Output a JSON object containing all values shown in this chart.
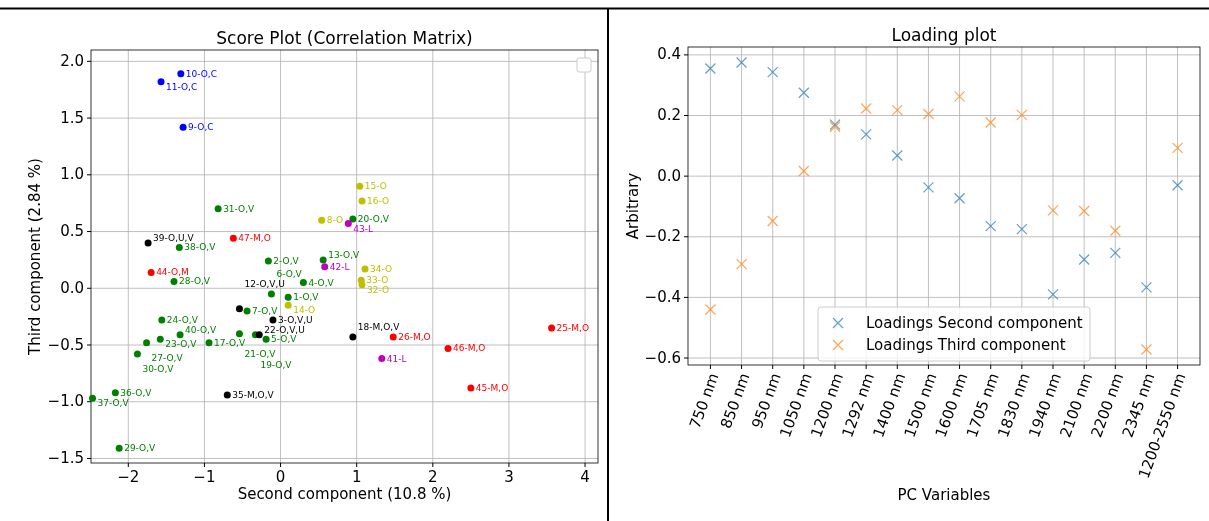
{
  "chart_data": [
    {
      "type": "scatter",
      "title": "Score Plot (Correlation Matrix)",
      "xlabel": "Second component (10.8 %)",
      "ylabel": "Third component (2.84 %)",
      "xlim": [
        -2.49,
        4.17
      ],
      "ylim": [
        -1.54,
        2.1
      ],
      "xticks": [
        {
          "value": -2,
          "label": "−2"
        },
        {
          "value": -1,
          "label": "−1"
        },
        0,
        1,
        2,
        3,
        4
      ],
      "yticks": [
        {
          "value": -1.5,
          "label": "−1.5"
        },
        {
          "value": -1,
          "label": "−1.0"
        },
        {
          "value": -0.5,
          "label": "−0.5"
        },
        {
          "value": 0,
          "label": "0.0"
        },
        {
          "value": 0.5,
          "label": "0.5"
        },
        {
          "value": 1,
          "label": "1.0"
        },
        {
          "value": 1.5,
          "label": "1.5"
        },
        {
          "value": 2,
          "label": "2.0"
        }
      ],
      "grid": true,
      "marker": "circle",
      "legend": false,
      "series": [
        {
          "color": "#0000ff",
          "x": [
            -1.31,
            -1.57,
            -1.28
          ],
          "values": [
            1.89,
            1.82,
            1.42
          ]
        },
        {
          "color": "#008000",
          "x": [
            -0.82,
            -1.33,
            -1.4,
            -0.16,
            0.95,
            0.56,
            0.3,
            -0.12,
            0.1,
            -0.44,
            -1.56,
            -1.32,
            -1.58,
            -1.76,
            -0.94,
            -0.54,
            -0.33,
            -0.19,
            -1.88,
            -2.17,
            -2.47,
            -2.12
          ],
          "values": [
            0.7,
            0.36,
            0.06,
            0.24,
            0.61,
            0.25,
            0.05,
            -0.05,
            -0.08,
            -0.2,
            -0.28,
            -0.41,
            -0.45,
            -0.48,
            -0.48,
            -0.4,
            -0.41,
            -0.45,
            -0.58,
            -0.92,
            -0.97,
            -1.41
          ]
        },
        {
          "color": "#000000",
          "x": [
            -1.74,
            -0.54,
            -0.1,
            -0.28,
            -0.7,
            0.95
          ],
          "values": [
            0.4,
            -0.18,
            -0.28,
            -0.41,
            -0.94,
            -0.43
          ]
        },
        {
          "color": "#ff0000",
          "x": [
            -0.62,
            -1.7,
            1.48,
            2.2,
            2.5,
            3.56
          ],
          "values": [
            0.44,
            0.14,
            -0.43,
            -0.53,
            -0.88,
            -0.35
          ]
        },
        {
          "color": "#bfbf00",
          "x": [
            0.54,
            1.04,
            1.07,
            1.11,
            1.06,
            1.07,
            0.1
          ],
          "values": [
            0.6,
            0.9,
            0.77,
            0.17,
            0.07,
            0.03,
            -0.15
          ]
        },
        {
          "color": "#bf00bf",
          "x": [
            0.89,
            0.58,
            1.33
          ],
          "values": [
            0.57,
            0.19,
            -0.62
          ]
        }
      ],
      "annotations": [
        {
          "text": "10-O,C",
          "x": -1.31,
          "y": 1.89
        },
        {
          "text": "11-O,C",
          "x": -1.57,
          "y": 1.82
        },
        {
          "text": "9-O,C",
          "x": -1.28,
          "y": 1.42
        },
        {
          "text": "31-O,V",
          "x": -0.82,
          "y": 0.7
        },
        {
          "text": "38-O,V",
          "x": -1.33,
          "y": 0.36
        },
        {
          "text": "28-O,V",
          "x": -1.4,
          "y": 0.06
        },
        {
          "text": "2-O,V",
          "x": -0.16,
          "y": 0.24
        },
        {
          "text": "20-O,V",
          "x": 0.95,
          "y": 0.61
        },
        {
          "text": "13-O,V",
          "x": 0.56,
          "y": 0.25
        },
        {
          "text": "4-O,V",
          "x": 0.3,
          "y": 0.05
        },
        {
          "text": "6-O,V",
          "x": -0.12,
          "y": -0.05
        },
        {
          "text": "1-O,V",
          "x": 0.1,
          "y": -0.08
        },
        {
          "text": "7-O,V",
          "x": -0.44,
          "y": -0.2
        },
        {
          "text": "24-O,V",
          "x": -1.56,
          "y": -0.28
        },
        {
          "text": "40-O,V",
          "x": -1.32,
          "y": -0.41
        },
        {
          "text": "23-O,V",
          "x": -1.58,
          "y": -0.45
        },
        {
          "text": "27-O,V",
          "x": -1.76,
          "y": -0.48
        },
        {
          "text": "17-O,V",
          "x": -0.94,
          "y": -0.48
        },
        {
          "text": "21-O,V",
          "x": -0.54,
          "y": -0.4
        },
        {
          "text": "19-O,V",
          "x": -0.33,
          "y": -0.41
        },
        {
          "text": "5-O,V",
          "x": -0.19,
          "y": -0.45
        },
        {
          "text": "30-O,V",
          "x": -1.88,
          "y": -0.58
        },
        {
          "text": "36-O,V",
          "x": -2.17,
          "y": -0.92
        },
        {
          "text": "37-O,V",
          "x": -2.47,
          "y": -0.97
        },
        {
          "text": "29-O,V",
          "x": -2.12,
          "y": -1.41
        },
        {
          "text": "39-O,U,V",
          "x": -1.74,
          "y": 0.4
        },
        {
          "text": "12-O,V,U",
          "x": -0.54,
          "y": -0.18
        },
        {
          "text": "3-O,V,U",
          "x": -0.1,
          "y": -0.28
        },
        {
          "text": "22-O,V,U",
          "x": -0.28,
          "y": -0.41
        },
        {
          "text": "35-M,O,V",
          "x": -0.7,
          "y": -0.94
        },
        {
          "text": "18-M,O,V",
          "x": 0.95,
          "y": -0.43
        },
        {
          "text": "47-M,O",
          "x": -0.62,
          "y": 0.44
        },
        {
          "text": "44-O,M",
          "x": -1.7,
          "y": 0.14
        },
        {
          "text": "26-M,O",
          "x": 1.48,
          "y": -0.43
        },
        {
          "text": "46-M,O",
          "x": 2.2,
          "y": -0.53
        },
        {
          "text": "45-M,O",
          "x": 2.5,
          "y": -0.88
        },
        {
          "text": "25-M,O",
          "x": 3.56,
          "y": -0.35
        },
        {
          "text": "8-O",
          "x": 0.54,
          "y": 0.6
        },
        {
          "text": "15-O",
          "x": 1.04,
          "y": 0.9
        },
        {
          "text": "16-O",
          "x": 1.07,
          "y": 0.77
        },
        {
          "text": "34-O",
          "x": 1.11,
          "y": 0.17
        },
        {
          "text": "33-O",
          "x": 1.06,
          "y": 0.07
        },
        {
          "text": "32-O",
          "x": 1.07,
          "y": 0.03
        },
        {
          "text": "14-O",
          "x": 0.1,
          "y": -0.15
        },
        {
          "text": "43-L",
          "x": 0.89,
          "y": 0.57
        },
        {
          "text": "42-L",
          "x": 0.58,
          "y": 0.19
        },
        {
          "text": "41-L",
          "x": 1.33,
          "y": -0.62
        }
      ]
    },
    {
      "type": "scatter",
      "title": "Loading plot",
      "xlabel": "PC Variables",
      "ylabel": "Arbitrary",
      "categories": [
        "750 nm",
        "850 nm",
        "950 nm",
        "1050 nm",
        "1200 nm",
        "1292 nm",
        "1400 nm",
        "1500 nm",
        "1600 nm",
        "1705 nm",
        "1830 nm",
        "1940 nm",
        "2100 nm",
        "2200 nm",
        "2345 nm",
        "1200-2550 nm"
      ],
      "ylim": [
        -0.623,
        0.426
      ],
      "yticks": [
        {
          "value": -0.6,
          "label": "−0.6"
        },
        {
          "value": -0.4,
          "label": "−0.4"
        },
        {
          "value": -0.2,
          "label": "−0.2"
        },
        {
          "value": 0,
          "label": "0.0"
        },
        0.2,
        0.4
      ],
      "grid": true,
      "marker": "cross",
      "legend": "bottom",
      "series": [
        {
          "name": "Loadings Second component",
          "color": "#1f77b4",
          "values": [
            0.355,
            0.375,
            0.343,
            0.275,
            0.17,
            0.138,
            0.068,
            -0.037,
            -0.073,
            -0.165,
            -0.175,
            -0.39,
            -0.275,
            -0.253,
            -0.367,
            -0.03
          ]
        },
        {
          "name": "Loadings Third component",
          "color": "#ff7f0e",
          "values": [
            -0.44,
            -0.29,
            -0.148,
            0.017,
            0.163,
            0.223,
            0.218,
            0.205,
            0.263,
            0.177,
            0.202,
            -0.113,
            -0.115,
            -0.18,
            -0.572,
            0.093
          ]
        }
      ]
    }
  ]
}
